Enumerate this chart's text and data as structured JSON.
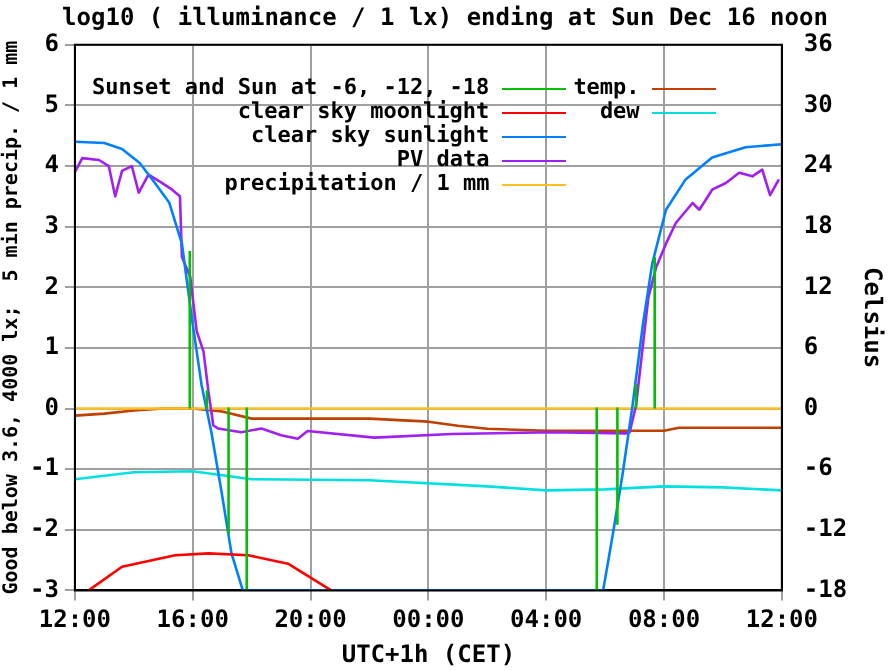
{
  "chart_data": {
    "type": "line",
    "title": "log10 ( illuminance / 1 lx) ending at Sun Dec 16 noon",
    "xlabel": "UTC+1h (CET)",
    "ylabel": "Good below 3.6, 4000 lx;  5 min precip. / 1 mm",
    "y2label": "Celsius",
    "xlim": [
      "--12-15T12:00",
      "--12-16T12:00"
    ],
    "xticks": [
      {
        "value": "--12-15T12:00",
        "label": "12:00"
      },
      {
        "value": "--12-15T16:00",
        "label": "16:00"
      },
      {
        "value": "--12-15T20:00",
        "label": "20:00"
      },
      {
        "value": "--12-16T00:00",
        "label": "00:00"
      },
      {
        "value": "--12-16T04:00",
        "label": "04:00"
      },
      {
        "value": "--12-16T08:00",
        "label": "08:00"
      },
      {
        "value": "--12-16T12:00",
        "label": "12:00"
      }
    ],
    "ylim": [
      -3,
      6
    ],
    "yticks": [
      -3,
      -2,
      -1,
      0,
      1,
      2,
      3,
      4,
      5,
      6
    ],
    "y2lim": [
      -18,
      36
    ],
    "y2ticks": [
      -18,
      -12,
      -6,
      0,
      6,
      12,
      18,
      24,
      30,
      36
    ],
    "grid": true,
    "legend": "top",
    "marker": "none",
    "line_style": "solid",
    "series": [
      {
        "name": "Sunset and Sun at -6, -12, -18",
        "color": "#00c000",
        "x": [
          "--12-15T15:54",
          "--12-15T15:54",
          null,
          "--12-15T16:29",
          "--12-15T16:29",
          null,
          "--12-15T17:13",
          "--12-15T17:13",
          null,
          "--12-15T17:50",
          "--12-15T17:50",
          null,
          "--12-16T05:43",
          "--12-16T05:43",
          null,
          "--12-16T06:25",
          "--12-16T06:25",
          null,
          "--12-16T07:03",
          "--12-16T07:03",
          null,
          "--12-16T07:41",
          "--12-16T07:41"
        ],
        "values": [
          0,
          2.6,
          null,
          0,
          0.3,
          null,
          0,
          -2.05,
          null,
          0,
          -3,
          null,
          0,
          -3,
          null,
          0,
          -1.9,
          null,
          0,
          0.4,
          null,
          0,
          2.5
        ]
      },
      {
        "name": "clear sky moonlight",
        "color": "#ff0000",
        "x": [
          "--12-15T12:28",
          "--12-15T13:36",
          "--12-15T15:24",
          "--12-15T16:32",
          "--12-15T17:53",
          "--12-15T19:14",
          "--12-15T20:42"
        ],
        "values": [
          -3,
          -2.61,
          -2.42,
          -2.39,
          -2.42,
          -2.56,
          -3
        ]
      },
      {
        "name": "clear sky sunlight",
        "color": "#0080ff",
        "x": [
          "--12-15T12:00",
          "--12-15T13:00",
          "--12-15T13:36",
          "--12-15T14:12",
          "--12-15T14:43",
          "--12-15T15:12",
          "--12-15T15:38",
          "--12-15T15:58",
          "--12-15T16:18",
          "--12-15T16:38",
          "--12-15T16:59",
          "--12-15T17:19",
          "--12-15T17:42",
          "--12-16T05:56",
          "--12-16T06:16",
          "--12-16T06:36",
          "--12-16T06:56",
          "--12-16T07:17",
          "--12-16T07:36",
          "--12-16T08:04",
          "--12-16T08:44",
          "--12-16T09:38",
          "--12-16T10:46",
          "--12-16T12:00"
        ],
        "values": [
          4.4,
          4.38,
          4.28,
          4.05,
          3.72,
          3.4,
          2.72,
          1.5,
          0.39,
          -0.39,
          -1.39,
          -2.39,
          -3,
          -3,
          -2.06,
          -1.06,
          0.06,
          1.39,
          2.39,
          3.28,
          3.78,
          4.14,
          4.31,
          4.36
        ]
      },
      {
        "name": "PV data",
        "color": "#a020f0",
        "x": [
          "--12-15T12:00",
          "--12-15T12:15",
          "--12-15T12:49",
          "--12-15T13:09",
          "--12-15T13:22",
          "--12-15T13:36",
          "--12-15T13:56",
          "--12-15T14:10",
          "--12-15T14:30",
          "--12-15T14:54",
          "--12-15T15:18",
          "--12-15T15:34",
          "--12-15T15:38",
          "--12-15T15:55",
          "--12-15T16:08",
          "--12-15T16:22",
          "--12-15T16:32",
          "--12-15T16:42",
          "--12-15T16:52",
          "--12-15T17:39",
          "--12-15T18:20",
          "--12-15T19:00",
          "--12-15T19:34",
          "--12-15T19:54",
          "--12-15T22:10",
          "--12-16T00:48",
          "--12-16T04:12",
          "--12-16T06:42",
          "--12-16T06:50",
          "--12-16T07:03",
          "--12-16T07:14",
          "--12-16T07:28",
          "--12-16T07:44",
          "--12-16T08:04",
          "--12-16T08:24",
          "--12-16T08:58",
          "--12-16T09:12",
          "--12-16T09:38",
          "--12-16T10:06",
          "--12-16T10:33",
          "--12-16T11:00",
          "--12-16T11:20",
          "--12-16T11:36",
          "--12-16T11:54"
        ],
        "values": [
          3.9,
          4.13,
          4.1,
          4,
          3.5,
          3.92,
          4,
          3.56,
          3.86,
          3.74,
          3.61,
          3.5,
          2.5,
          2.17,
          1.28,
          0.94,
          0.28,
          -0.28,
          -0.33,
          -0.39,
          -0.33,
          -0.44,
          -0.5,
          -0.37,
          -0.48,
          -0.42,
          -0.39,
          -0.41,
          -0.39,
          0.05,
          0.83,
          1.83,
          2.33,
          2.72,
          3.06,
          3.39,
          3.28,
          3.61,
          3.72,
          3.89,
          3.83,
          3.94,
          3.52,
          3.78
        ]
      },
      {
        "name": "precipitation / 1 mm",
        "color": "#ffc020",
        "x": [
          "--12-15T12:00",
          "--12-16T12:00"
        ],
        "values": [
          0,
          0
        ]
      },
      {
        "name": "temp.",
        "color": "#c04000",
        "axis": "y2",
        "x": [
          "--12-15T12:00",
          "--12-15T13:00",
          "--12-15T14:00",
          "--12-15T15:00",
          "--12-15T16:00",
          "--12-15T17:00",
          "--12-15T18:00",
          "--12-15T20:00",
          "--12-15T22:00",
          "--12-16T00:00",
          "--12-16T01:00",
          "--12-16T02:00",
          "--12-16T04:00",
          "--12-16T06:00",
          "--12-16T08:00",
          "--12-16T08:30",
          "--12-16T10:00",
          "--12-16T12:00"
        ],
        "values": [
          -0.7,
          -0.5,
          -0.2,
          0,
          0,
          -0.3,
          -1,
          -1,
          -1,
          -1.3,
          -1.7,
          -2,
          -2.2,
          -2.2,
          -2.2,
          -1.9,
          -1.9,
          -1.9
        ]
      },
      {
        "name": "dew",
        "color": "#00e0e0",
        "axis": "y2",
        "x": [
          "--12-15T12:00",
          "--12-15T14:00",
          "--12-15T16:00",
          "--12-15T18:00",
          "--12-15T22:00",
          "--12-16T02:00",
          "--12-16T04:00",
          "--12-16T06:00",
          "--12-16T08:00",
          "--12-16T10:00",
          "--12-16T12:00"
        ],
        "values": [
          -7,
          -6.3,
          -6.2,
          -7,
          -7.1,
          -7.7,
          -8.1,
          -8,
          -7.7,
          -7.8,
          -8.1
        ]
      }
    ]
  }
}
